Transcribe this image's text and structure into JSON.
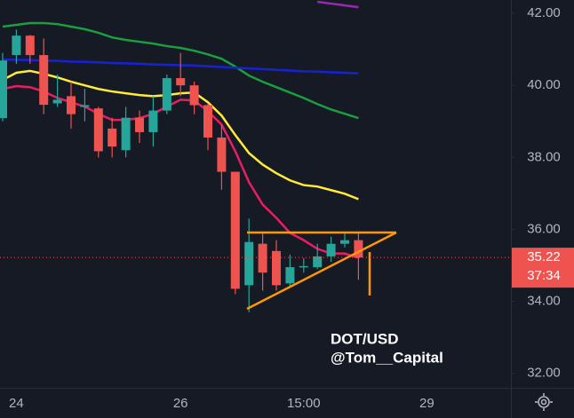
{
  "chart_data": {
    "type": "candlestick",
    "categories": [
      null,
      "24",
      null,
      null,
      null,
      null,
      null,
      null,
      null,
      null,
      null,
      null,
      null,
      "26",
      null,
      null,
      null,
      null,
      null,
      null,
      null,
      null,
      "15:00",
      null,
      null,
      null,
      null,
      null,
      null,
      null,
      null,
      "29",
      null,
      null,
      null,
      null,
      null
    ],
    "open": [
      39.09,
      40.84,
      41.38,
      40.84,
      39.5,
      39.7,
      39.4,
      39.36,
      38.8,
      38.2,
      39.1,
      38.7,
      39.3,
      40.2,
      40.0,
      39.45,
      38.55,
      37.6,
      34.45,
      35.6,
      35.4,
      34.5,
      34.95,
      34.95,
      35.25,
      35.6,
      35.7,
      null,
      null,
      null,
      null,
      null,
      null,
      null,
      null,
      null,
      null
    ],
    "high": [
      40.9,
      41.55,
      41.4,
      41.3,
      40.3,
      40.1,
      39.9,
      39.4,
      39.1,
      39.4,
      39.3,
      39.7,
      40.3,
      40.9,
      40.1,
      39.5,
      38.9,
      37.6,
      36.3,
      35.9,
      35.7,
      35.3,
      35.2,
      35.6,
      35.8,
      35.9,
      35.9,
      null,
      null,
      null,
      null,
      null,
      null,
      null,
      null,
      null,
      null
    ],
    "low": [
      39.0,
      40.6,
      40.6,
      39.2,
      39.4,
      38.8,
      39.0,
      38.0,
      38.0,
      38.0,
      38.4,
      38.3,
      39.2,
      39.7,
      39.2,
      38.2,
      37.1,
      34.2,
      33.7,
      34.3,
      34.3,
      34.4,
      34.8,
      34.9,
      35.1,
      35.5,
      34.6,
      null,
      null,
      null,
      null,
      null,
      null,
      null,
      null,
      null,
      null
    ],
    "close": [
      40.69,
      41.38,
      40.84,
      39.46,
      39.6,
      39.2,
      39.45,
      38.17,
      38.3,
      39.1,
      38.7,
      39.3,
      40.2,
      40.0,
      39.45,
      38.55,
      37.6,
      34.35,
      35.65,
      34.8,
      34.45,
      34.95,
      34.98,
      35.25,
      35.6,
      35.7,
      35.22,
      null,
      null,
      null,
      null,
      null,
      null,
      null,
      null,
      null,
      null
    ],
    "up_color": "#26a69a",
    "down_color": "#ef5350",
    "series": [
      {
        "color": "#9c27b0",
        "values": [
          null,
          null,
          null,
          null,
          null,
          null,
          null,
          null,
          null,
          null,
          null,
          null,
          null,
          null,
          null,
          null,
          null,
          null,
          null,
          null,
          null,
          null,
          null,
          42.32,
          42.27,
          42.22,
          42.17,
          null,
          null,
          null,
          null,
          null,
          null,
          null,
          null,
          null,
          null
        ]
      },
      {
        "color": "#1b9e3e",
        "values": [
          41.63,
          41.68,
          41.73,
          41.73,
          41.7,
          41.63,
          41.56,
          41.46,
          41.33,
          41.26,
          41.21,
          41.16,
          41.09,
          41.04,
          40.96,
          40.86,
          40.74,
          40.52,
          40.27,
          40.1,
          39.95,
          39.8,
          39.65,
          39.48,
          39.33,
          39.21,
          39.09,
          null,
          null,
          null,
          null,
          null,
          null,
          null,
          null,
          null,
          null
        ]
      },
      {
        "color": "#1721d6",
        "values": [
          40.72,
          40.71,
          40.7,
          40.69,
          40.68,
          40.66,
          40.65,
          40.64,
          40.62,
          40.61,
          40.6,
          40.58,
          40.57,
          40.56,
          40.55,
          40.53,
          40.51,
          40.49,
          40.47,
          40.45,
          40.43,
          40.41,
          40.39,
          40.38,
          40.36,
          40.35,
          40.33,
          null,
          null,
          null,
          null,
          null,
          null,
          null,
          null,
          null,
          null
        ]
      },
      {
        "color": "#ffeb3b",
        "values": [
          40.15,
          40.35,
          40.4,
          40.32,
          40.22,
          40.1,
          40.0,
          39.9,
          39.83,
          39.78,
          39.73,
          39.7,
          39.73,
          39.78,
          39.8,
          39.53,
          39.16,
          38.62,
          38.12,
          37.8,
          37.56,
          37.36,
          37.23,
          37.19,
          37.09,
          36.99,
          36.84,
          null,
          null,
          null,
          null,
          null,
          null,
          null,
          null,
          null,
          null
        ]
      },
      {
        "color": "#e91e63",
        "values": [
          39.9,
          39.98,
          39.95,
          39.83,
          39.65,
          39.53,
          39.41,
          39.21,
          39.04,
          39.04,
          39.09,
          39.21,
          39.41,
          39.6,
          39.58,
          39.28,
          38.91,
          38.17,
          37.31,
          36.69,
          36.32,
          35.9,
          35.7,
          35.46,
          35.33,
          35.33,
          35.21,
          null,
          null,
          null,
          null,
          null,
          null,
          null,
          null,
          null,
          null
        ]
      }
    ],
    "ylim": [
      31.6,
      42.37
    ],
    "yticks": [
      {
        "value": 32,
        "label": "32.00"
      },
      {
        "value": 34,
        "label": "34.00"
      },
      {
        "value": 36,
        "label": "36.00"
      },
      {
        "value": 38,
        "label": "38.00"
      },
      {
        "value": 40,
        "label": "40.00"
      },
      {
        "value": 42,
        "label": "42.00"
      }
    ],
    "last_price": {
      "value": 35.22,
      "label": "35.22"
    },
    "countdown": "37:34",
    "watermark": [
      "DOT/USD",
      "@Tom__Capital"
    ]
  }
}
